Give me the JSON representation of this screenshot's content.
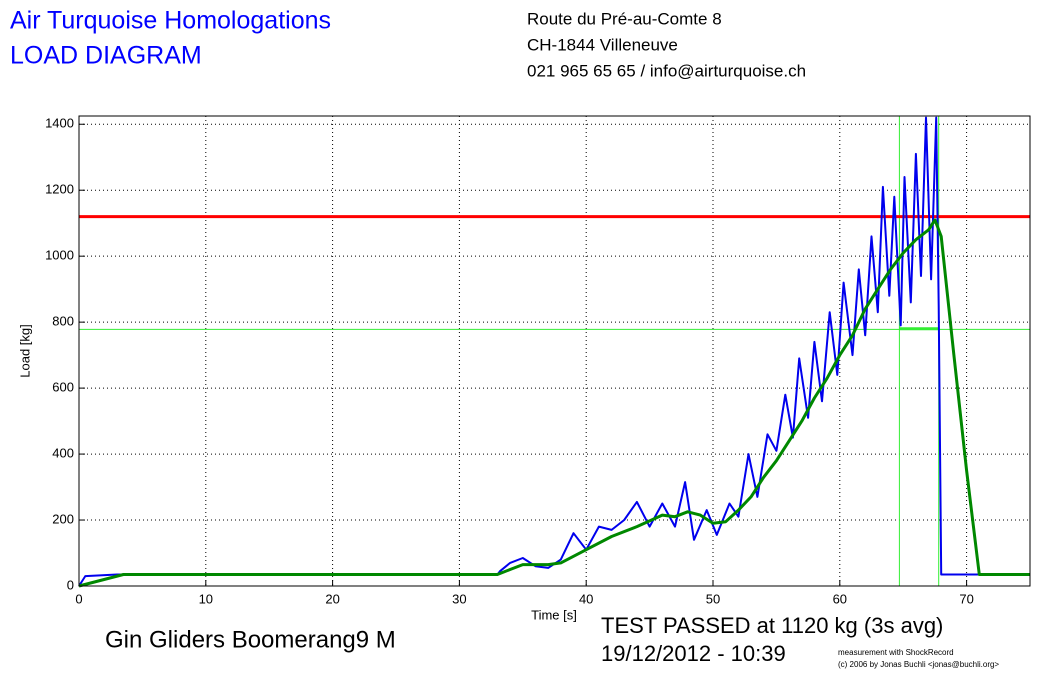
{
  "header": {
    "company": [
      "Air Turquoise Homologations",
      "LOAD DIAGRAM"
    ],
    "address": [
      "Route du Pré-au-Comte 8",
      "CH-1844 Villeneuve",
      "021 965 65 65 / info@airturquoise.ch"
    ],
    "glider": "Gin Gliders Boomerang9 M",
    "result": "TEST PASSED at 1120 kg (3s avg)",
    "date": "19/12/2012 - 10:39",
    "credit": [
      "measurement with ShockRecord",
      "(c) 2006 by Jonas Buchli <jonas@buchli.org>"
    ]
  },
  "chart_data": {
    "type": "line",
    "x_label": "Time [s]",
    "y_label": "Load [kg]",
    "xlim": [
      0,
      75
    ],
    "ylim": [
      0,
      1425
    ],
    "xticks": [
      0,
      10,
      20,
      30,
      40,
      50,
      60,
      70
    ],
    "yticks": [
      0,
      200,
      400,
      600,
      800,
      1000,
      1200,
      1400
    ],
    "grid": true,
    "reference_lines": [
      {
        "value": 1120,
        "color": "#ff0000"
      },
      {
        "value": 778,
        "color": "#33ee33"
      }
    ],
    "window": {
      "x": [
        64.7,
        67.8
      ],
      "value": 780,
      "color": "#33ee33"
    },
    "series": [
      {
        "color": "#0000ee",
        "x": [
          0,
          0.5,
          3,
          33,
          33.2,
          34,
          35,
          36,
          37,
          38,
          39,
          40,
          41,
          42,
          43,
          44,
          45,
          46,
          47,
          47.8,
          48.5,
          49.5,
          50.3,
          51.3,
          52,
          52.8,
          53.5,
          54.3,
          55,
          55.7,
          56.3,
          56.8,
          57.5,
          58,
          58.6,
          59.2,
          59.8,
          60.3,
          61,
          61.5,
          62,
          62.5,
          63,
          63.4,
          63.9,
          64.3,
          64.8,
          65.1,
          65.6,
          66,
          66.4,
          66.8,
          67.2,
          67.6,
          67.8,
          68,
          70,
          75
        ],
        "values": [
          0,
          30,
          35,
          35,
          45,
          70,
          85,
          60,
          55,
          80,
          160,
          110,
          180,
          170,
          200,
          255,
          180,
          250,
          180,
          315,
          140,
          230,
          155,
          250,
          210,
          400,
          270,
          460,
          410,
          580,
          450,
          690,
          510,
          740,
          560,
          830,
          640,
          920,
          700,
          960,
          760,
          1060,
          830,
          1210,
          880,
          1180,
          790,
          1240,
          860,
          1310,
          940,
          1420,
          930,
          1420,
          850,
          35,
          35,
          35
        ]
      },
      {
        "color": "#008800",
        "x": [
          0,
          3.5,
          33,
          34,
          35,
          37,
          38,
          40,
          42,
          44,
          46,
          47,
          48,
          49,
          50,
          51,
          52,
          53,
          54,
          55,
          56,
          57,
          58,
          59,
          60,
          61,
          62,
          63,
          64,
          65,
          66,
          67,
          67.5,
          68,
          69,
          70,
          71,
          75
        ],
        "values": [
          0,
          35,
          35,
          50,
          65,
          65,
          70,
          110,
          150,
          180,
          215,
          210,
          225,
          215,
          190,
          195,
          230,
          270,
          330,
          380,
          440,
          500,
          570,
          630,
          700,
          760,
          840,
          900,
          960,
          1010,
          1050,
          1080,
          1110,
          1060,
          700,
          350,
          35,
          35
        ]
      }
    ]
  }
}
